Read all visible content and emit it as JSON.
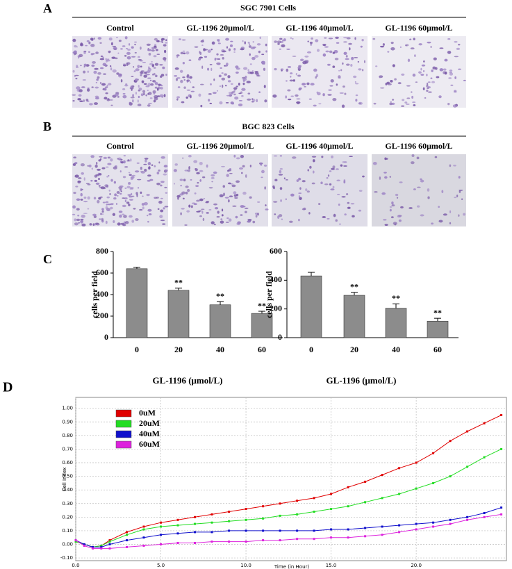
{
  "panel_a": {
    "label": "A",
    "title": "SGC 7901 Cells",
    "columns": [
      "Control",
      "GL-1196 20μmol/L",
      "GL-1196 40μmol/L",
      "GL-1196 60μmol/L"
    ]
  },
  "panel_b": {
    "label": "B",
    "title": "BGC 823 Cells",
    "columns": [
      "Control",
      "GL-1196 20μmol/L",
      "GL-1196 40μmol/L",
      "GL-1196 60μmol/L"
    ]
  },
  "panel_c": {
    "label": "C"
  },
  "panel_d": {
    "label": "D"
  },
  "chart_data": [
    {
      "type": "bar",
      "ylabel": "cells per field",
      "xlabel": "GL-1196  (μmol/L)",
      "categories": [
        "0",
        "20",
        "40",
        "60"
      ],
      "values": [
        640,
        440,
        305,
        225
      ],
      "errors": [
        15,
        20,
        30,
        20
      ],
      "annotations": [
        null,
        "**",
        "**",
        "**"
      ],
      "color": "#8c8c8c",
      "ylim": [
        0,
        800
      ],
      "yticks": [
        0,
        200,
        400,
        600,
        800
      ]
    },
    {
      "type": "bar",
      "ylabel": "cells per field",
      "xlabel": "GL-1196  (μmol/L)",
      "categories": [
        "0",
        "20",
        "40",
        "60"
      ],
      "values": [
        430,
        295,
        205,
        115
      ],
      "errors": [
        25,
        20,
        30,
        20
      ],
      "annotations": [
        null,
        "**",
        "**",
        "**"
      ],
      "color": "#8c8c8c",
      "ylim": [
        0,
        600
      ],
      "yticks": [
        0,
        200,
        400,
        600
      ]
    },
    {
      "type": "line",
      "ylabel": "Cell Index",
      "xlabel": "Time (in Hour)",
      "grid": true,
      "legend": "top-left",
      "x": [
        0,
        0.5,
        1,
        1.5,
        2,
        3,
        4,
        5,
        6,
        7,
        8,
        9,
        10,
        11,
        12,
        13,
        14,
        15,
        16,
        17,
        18,
        19,
        20,
        21,
        22,
        23,
        24,
        25
      ],
      "xlim": [
        0,
        25.3
      ],
      "ylim": [
        -0.12,
        1.08
      ],
      "xticks": [
        {
          "value": 0,
          "label": "0.0"
        },
        {
          "value": 5,
          "label": "5.0"
        },
        {
          "value": 10,
          "label": "10.0"
        },
        {
          "value": 15,
          "label": "15.0"
        },
        {
          "value": 20,
          "label": "20.0"
        }
      ],
      "yticks": [
        {
          "value": -0.1,
          "label": "-0.10"
        },
        {
          "value": 0,
          "label": "0.00"
        },
        {
          "value": 0.1,
          "label": "0.10"
        },
        {
          "value": 0.2,
          "label": "0.20"
        },
        {
          "value": 0.3,
          "label": "0.30"
        },
        {
          "value": 0.4,
          "label": "0.40"
        },
        {
          "value": 0.5,
          "label": "0.50"
        },
        {
          "value": 0.6,
          "label": "0.60"
        },
        {
          "value": 0.7,
          "label": "0.70"
        },
        {
          "value": 0.8,
          "label": "0.80"
        },
        {
          "value": 0.9,
          "label": "0.90"
        },
        {
          "value": 1.0,
          "label": "1.00"
        }
      ],
      "series": [
        {
          "name": "0uM",
          "color": "#e00000",
          "values": [
            0.02,
            0.0,
            -0.02,
            -0.01,
            0.03,
            0.09,
            0.13,
            0.16,
            0.18,
            0.2,
            0.22,
            0.24,
            0.26,
            0.28,
            0.3,
            0.32,
            0.34,
            0.37,
            0.42,
            0.46,
            0.51,
            0.56,
            0.6,
            0.67,
            0.76,
            0.83,
            0.89,
            0.95
          ]
        },
        {
          "name": "20uM",
          "color": "#22dd22",
          "values": [
            0.02,
            0.0,
            -0.02,
            -0.01,
            0.02,
            0.07,
            0.11,
            0.13,
            0.14,
            0.15,
            0.16,
            0.17,
            0.18,
            0.19,
            0.21,
            0.22,
            0.24,
            0.26,
            0.28,
            0.31,
            0.34,
            0.37,
            0.41,
            0.45,
            0.5,
            0.57,
            0.64,
            0.7
          ]
        },
        {
          "name": "40uM",
          "color": "#1010cc",
          "values": [
            0.03,
            0.0,
            -0.02,
            -0.02,
            0.0,
            0.03,
            0.05,
            0.07,
            0.08,
            0.09,
            0.09,
            0.1,
            0.1,
            0.1,
            0.1,
            0.1,
            0.1,
            0.11,
            0.11,
            0.12,
            0.13,
            0.14,
            0.15,
            0.16,
            0.18,
            0.2,
            0.23,
            0.27
          ]
        },
        {
          "name": "60uM",
          "color": "#dd22dd",
          "values": [
            0.03,
            -0.01,
            -0.03,
            -0.03,
            -0.03,
            -0.02,
            -0.01,
            0.0,
            0.01,
            0.01,
            0.02,
            0.02,
            0.02,
            0.03,
            0.03,
            0.04,
            0.04,
            0.05,
            0.05,
            0.06,
            0.07,
            0.09,
            0.11,
            0.13,
            0.15,
            0.18,
            0.2,
            0.22
          ]
        }
      ]
    }
  ]
}
